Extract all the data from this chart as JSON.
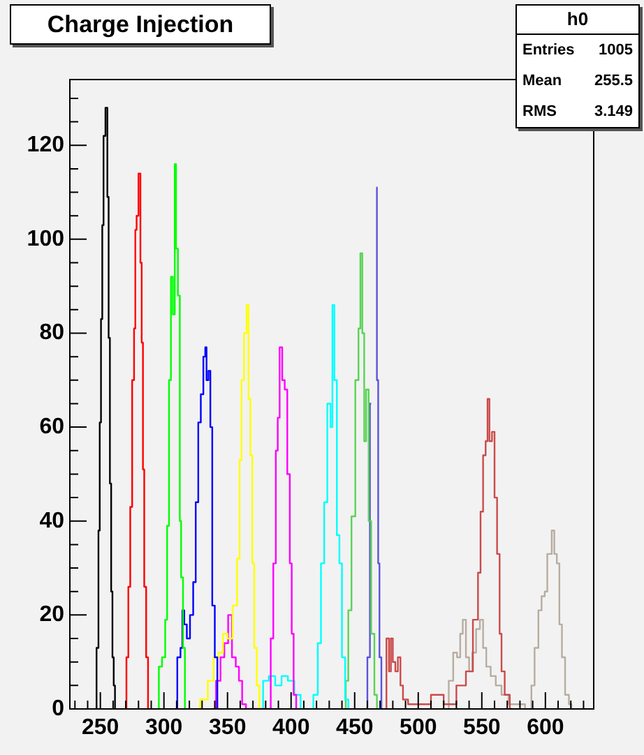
{
  "chart_data": {
    "type": "step",
    "title": "Charge Injection",
    "annotations": [
      "h0",
      "Entries 1005",
      "Mean 255.5",
      "RMS 3.149"
    ],
    "xlim": [
      226,
      638
    ],
    "ylim": [
      0,
      134
    ],
    "xticks": [
      {
        "value": 230,
        "label": null
      },
      {
        "value": 240,
        "label": null
      },
      250,
      {
        "value": 260,
        "label": null
      },
      {
        "value": 270,
        "label": null
      },
      {
        "value": 280,
        "label": null
      },
      {
        "value": 290,
        "label": null
      },
      300,
      {
        "value": 310,
        "label": null
      },
      {
        "value": 320,
        "label": null
      },
      {
        "value": 330,
        "label": null
      },
      {
        "value": 340,
        "label": null
      },
      350,
      {
        "value": 360,
        "label": null
      },
      {
        "value": 370,
        "label": null
      },
      {
        "value": 380,
        "label": null
      },
      {
        "value": 390,
        "label": null
      },
      400,
      {
        "value": 410,
        "label": null
      },
      {
        "value": 420,
        "label": null
      },
      {
        "value": 430,
        "label": null
      },
      {
        "value": 440,
        "label": null
      },
      450,
      {
        "value": 460,
        "label": null
      },
      {
        "value": 470,
        "label": null
      },
      {
        "value": 480,
        "label": null
      },
      {
        "value": 490,
        "label": null
      },
      500,
      {
        "value": 510,
        "label": null
      },
      {
        "value": 520,
        "label": null
      },
      {
        "value": 530,
        "label": null
      },
      {
        "value": 540,
        "label": null
      },
      550,
      {
        "value": 560,
        "label": null
      },
      {
        "value": 570,
        "label": null
      },
      {
        "value": 580,
        "label": null
      },
      {
        "value": 590,
        "label": null
      },
      600,
      {
        "value": 610,
        "label": null
      },
      {
        "value": 620,
        "label": null
      },
      {
        "value": 630,
        "label": null
      }
    ],
    "yticks": [
      0,
      {
        "value": 5,
        "label": null
      },
      {
        "value": 10,
        "label": null
      },
      {
        "value": 15,
        "label": null
      },
      20,
      {
        "value": 25,
        "label": null
      },
      {
        "value": 30,
        "label": null
      },
      {
        "value": 35,
        "label": null
      },
      40,
      {
        "value": 45,
        "label": null
      },
      {
        "value": 50,
        "label": null
      },
      {
        "value": 55,
        "label": null
      },
      60,
      {
        "value": 65,
        "label": null
      },
      {
        "value": 70,
        "label": null
      },
      {
        "value": 75,
        "label": null
      },
      80,
      {
        "value": 85,
        "label": null
      },
      {
        "value": 90,
        "label": null
      },
      {
        "value": 95,
        "label": null
      },
      100,
      {
        "value": 105,
        "label": null
      },
      {
        "value": 110,
        "label": null
      },
      {
        "value": 115,
        "label": null
      },
      120,
      {
        "value": 125,
        "label": null
      },
      {
        "value": 130,
        "label": null
      }
    ],
    "grid": false,
    "legend": false,
    "series": [
      {
        "color": "#000000",
        "x": [
          246,
          248,
          249,
          250,
          251,
          252,
          253,
          255,
          256,
          257,
          258,
          259,
          260,
          261,
          262
        ],
        "values": [
          0,
          13,
          38,
          61,
          83,
          103,
          122,
          128,
          109,
          79,
          48,
          25,
          11,
          5,
          0
        ]
      },
      {
        "color": "#ff0000",
        "x": [
          270,
          271,
          273,
          274,
          276,
          277,
          278,
          279,
          281,
          282,
          283,
          284,
          285,
          287,
          288
        ],
        "values": [
          0,
          11,
          26,
          43,
          70,
          81,
          102,
          105,
          114,
          95,
          78,
          51,
          26,
          11,
          0
        ]
      },
      {
        "color": "#00ff00",
        "x": [
          295,
          297,
          300,
          302,
          303,
          305,
          306,
          308,
          309,
          310,
          312,
          313,
          314,
          316,
          317
        ],
        "values": [
          0,
          9,
          11,
          19,
          39,
          70,
          92,
          84,
          116,
          98,
          88,
          40,
          28,
          13,
          0
        ]
      },
      {
        "color": "#0000ff",
        "x": [
          309,
          312,
          314,
          315,
          317,
          319,
          322,
          324,
          326,
          328,
          330,
          332,
          333,
          334,
          336,
          337,
          339,
          341,
          343
        ],
        "values": [
          0,
          11,
          13,
          21,
          18,
          15,
          20,
          27,
          44,
          61,
          67,
          75,
          77,
          70,
          72,
          60,
          22,
          11,
          0
        ]
      },
      {
        "color": "#ffff00",
        "x": [
          325,
          332,
          337,
          341,
          345,
          348,
          352,
          356,
          359,
          360,
          362,
          364,
          366,
          367,
          369,
          370,
          372,
          374,
          376
        ],
        "values": [
          0,
          2,
          6,
          11,
          12,
          16,
          15,
          22,
          32,
          53,
          70,
          80,
          86,
          66,
          54,
          31,
          13,
          5,
          0
        ]
      },
      {
        "color": "#ff00ff",
        "x": [
          339,
          343,
          346,
          349,
          352,
          355,
          358,
          360,
          363,
          366,
          383,
          385,
          387,
          389,
          390,
          392,
          394,
          396,
          398,
          400,
          401,
          403,
          405
        ],
        "values": [
          0,
          6,
          11,
          14,
          20,
          11,
          9,
          6,
          1,
          0,
          0,
          15,
          31,
          55,
          62,
          77,
          70,
          68,
          50,
          31,
          16,
          3,
          0
        ]
      },
      {
        "color": "#00ffff",
        "x": [
          376,
          380,
          385,
          390,
          395,
          400,
          405,
          410,
          415,
          420,
          422,
          425,
          427,
          430,
          432,
          433,
          435,
          437,
          439,
          441,
          444,
          446
        ],
        "values": [
          0,
          6,
          7,
          5,
          7,
          6,
          3,
          0,
          0,
          3,
          14,
          31,
          44,
          65,
          60,
          86,
          70,
          37,
          31,
          11,
          2,
          0
        ]
      },
      {
        "color": "#59d454",
        "x": [
          442,
          444,
          446,
          449,
          452,
          454,
          455,
          457,
          458,
          460,
          462,
          464,
          467,
          468
        ],
        "values": [
          0,
          6,
          21,
          41,
          70,
          81,
          97,
          80,
          57,
          68,
          40,
          16,
          3,
          0
        ]
      },
      {
        "color": "#5954d9",
        "x": [
          459,
          461,
          463,
          464,
          466,
          467,
          468,
          469,
          470,
          472
        ],
        "values": [
          0,
          11,
          65,
          null,
          null,
          111,
          70,
          31,
          11,
          0
        ]
      },
      {
        "color": "#cc4a4a",
        "x": [
          474,
          476,
          478,
          479,
          481,
          483,
          485,
          487,
          489,
          495,
          505,
          515,
          525,
          535,
          540,
          546,
          548,
          550,
          552,
          554,
          555,
          557,
          559,
          561,
          563,
          565,
          566,
          570,
          574
        ],
        "values": [
          0,
          15,
          8,
          15,
          10,
          8,
          11,
          5,
          2,
          1,
          1,
          3,
          1,
          5,
          8,
          19,
          29,
          42,
          54,
          57,
          66,
          57,
          59,
          45,
          33,
          16,
          8,
          3,
          0
        ]
      },
      {
        "color": "#b8aca0",
        "x": [
          522,
          526,
          529,
          532,
          534,
          536,
          539,
          541,
          544,
          547,
          550,
          552,
          555,
          559,
          563,
          568,
          574,
          580,
          588,
          590,
          593,
          596,
          598,
          601,
          602,
          604,
          606,
          608,
          610,
          612,
          614,
          617,
          620,
          621
        ],
        "values": [
          0,
          6,
          12,
          11,
          16,
          19,
          11,
          8,
          12,
          17,
          19,
          13,
          9,
          7,
          5,
          3,
          1,
          1,
          0,
          5,
          13,
          21,
          24,
          25,
          33,
          33,
          38,
          33,
          31,
          18,
          11,
          3,
          1,
          0
        ]
      }
    ]
  }
}
